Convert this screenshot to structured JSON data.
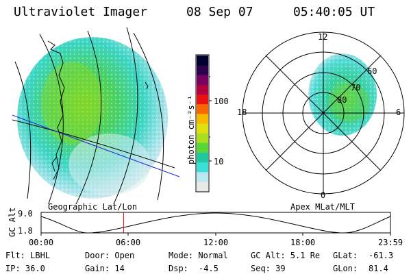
{
  "header": {
    "instrument": "Ultraviolet Imager",
    "date": "08 Sep 07",
    "time": "05:40:05 UT"
  },
  "left_panel": {
    "caption": "Geographic Lat/Lon"
  },
  "right_panel": {
    "caption": "Apex MLat/MLT",
    "mlt_labels": {
      "top": "12",
      "left": "18",
      "right": "6",
      "bottom": "0"
    },
    "mlat_labels": [
      "60",
      "70",
      "80"
    ]
  },
  "colorbar": {
    "unit_label": "photon cm⁻²s⁻¹",
    "ticks": [
      "100",
      "10"
    ],
    "colors": [
      "#e8e8e8",
      "#b8e8f0",
      "#38e0d8",
      "#20c8a0",
      "#58d838",
      "#a8e020",
      "#e0e010",
      "#f8b800",
      "#f86800",
      "#e81010",
      "#b00040",
      "#780060",
      "#300050",
      "#000030"
    ]
  },
  "altitude_plot": {
    "ylabel": "GC Alt",
    "yticks": [
      "9.0",
      "1.8"
    ],
    "xticks": [
      "00:00",
      "06:00",
      "12:00",
      "18:00",
      "23:59"
    ],
    "current_time_fraction": 0.236,
    "marker_color": "#e00000"
  },
  "status": {
    "flt": "Flt: LBHL",
    "door": "Door: Open",
    "mode": "Mode: Normal",
    "gc_alt": "GC Alt: 5.1 Re",
    "glat_label": "GLat:",
    "glat_value": "-61.3",
    "ip": "IP: 36.0",
    "gain": "Gain: 14",
    "dsp_label": "Dsp:",
    "dsp_value": "-4.5",
    "seq": "Seq: 39",
    "glon_label": "GLon:",
    "glon_value": "81.4"
  }
}
